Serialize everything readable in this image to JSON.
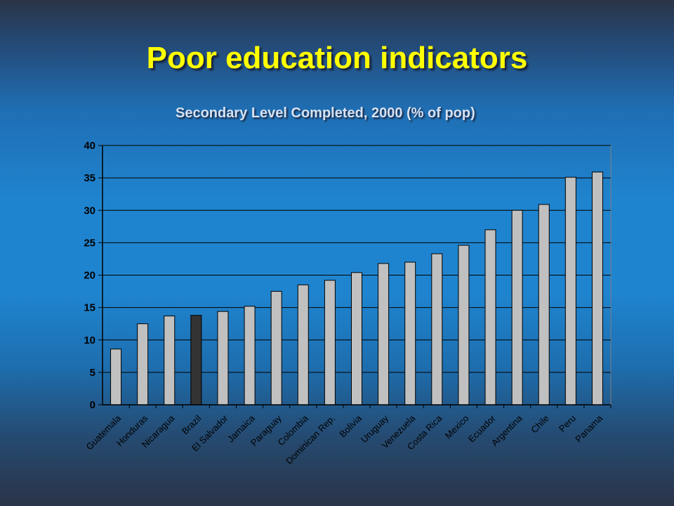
{
  "slide": {
    "title": "Poor education indicators"
  },
  "colors": {
    "title": "#ffff00",
    "subtitle": "#d6e2f2",
    "bar": "#c0c0c0",
    "bar_highlight": "#333333",
    "gridline": "#000000"
  },
  "chart_data": {
    "type": "bar",
    "title": "Secondary Level Completed, 2000 (% of pop)",
    "xlabel": "",
    "ylabel": "",
    "ylim": [
      0,
      40
    ],
    "yticks": [
      0,
      5,
      10,
      15,
      20,
      25,
      30,
      35,
      40
    ],
    "grid": true,
    "categories": [
      "Guatemala",
      "Honduras",
      "Nicaragua",
      "Brazil",
      "El Salvador",
      "Jamaica",
      "Paraguay",
      "Colombia",
      "Dominican Rep.",
      "Bolivia",
      "Uruguay",
      "Venezuela",
      "Costa Rica",
      "Mexico",
      "Ecuador",
      "Argentina",
      "Chile",
      "Peru",
      "Panama"
    ],
    "values": [
      8.6,
      12.5,
      13.7,
      13.8,
      14.4,
      15.2,
      17.5,
      18.5,
      19.2,
      20.4,
      21.8,
      22.0,
      23.3,
      24.6,
      27.0,
      30.0,
      30.9,
      35.1,
      35.9
    ],
    "highlight": "Brazil"
  }
}
